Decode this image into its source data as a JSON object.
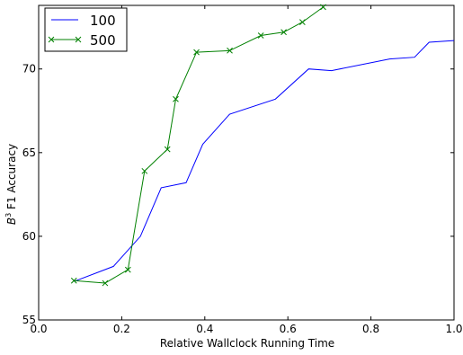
{
  "chart_data": {
    "type": "line",
    "xlabel": "Relative Wallclock Running Time",
    "ylabel": "F1 Accuracy",
    "ylabel_prefix": "B",
    "ylabel_superscript": "3",
    "xlim": [
      0.0,
      1.0
    ],
    "ylim": [
      55,
      73.8
    ],
    "xticks": [
      0.0,
      0.2,
      0.4,
      0.6,
      0.8,
      1.0
    ],
    "xtick_labels": [
      "0.0",
      "0.2",
      "0.4",
      "0.6",
      "0.8",
      "1.0"
    ],
    "yticks": [
      55,
      60,
      65,
      70
    ],
    "ytick_labels": [
      "55",
      "60",
      "65",
      "70"
    ],
    "grid": false,
    "legend_position": "top-left",
    "series": [
      {
        "name": "100",
        "color": "#0000ff",
        "marker": "none",
        "x": [
          0.085,
          0.18,
          0.245,
          0.295,
          0.355,
          0.395,
          0.46,
          0.57,
          0.65,
          0.705,
          0.845,
          0.905,
          0.94,
          1.0
        ],
        "y": [
          57.3,
          58.2,
          60.0,
          62.9,
          63.2,
          65.5,
          67.3,
          68.2,
          70.0,
          69.9,
          70.6,
          70.7,
          71.6,
          71.7
        ]
      },
      {
        "name": "500",
        "color": "#008000",
        "marker": "x",
        "x": [
          0.085,
          0.16,
          0.215,
          0.255,
          0.31,
          0.33,
          0.38,
          0.46,
          0.535,
          0.59,
          0.635,
          0.685
        ],
        "y": [
          57.35,
          57.2,
          58.0,
          63.9,
          65.2,
          68.2,
          71.0,
          71.1,
          72.0,
          72.2,
          72.8,
          73.7
        ]
      }
    ]
  }
}
